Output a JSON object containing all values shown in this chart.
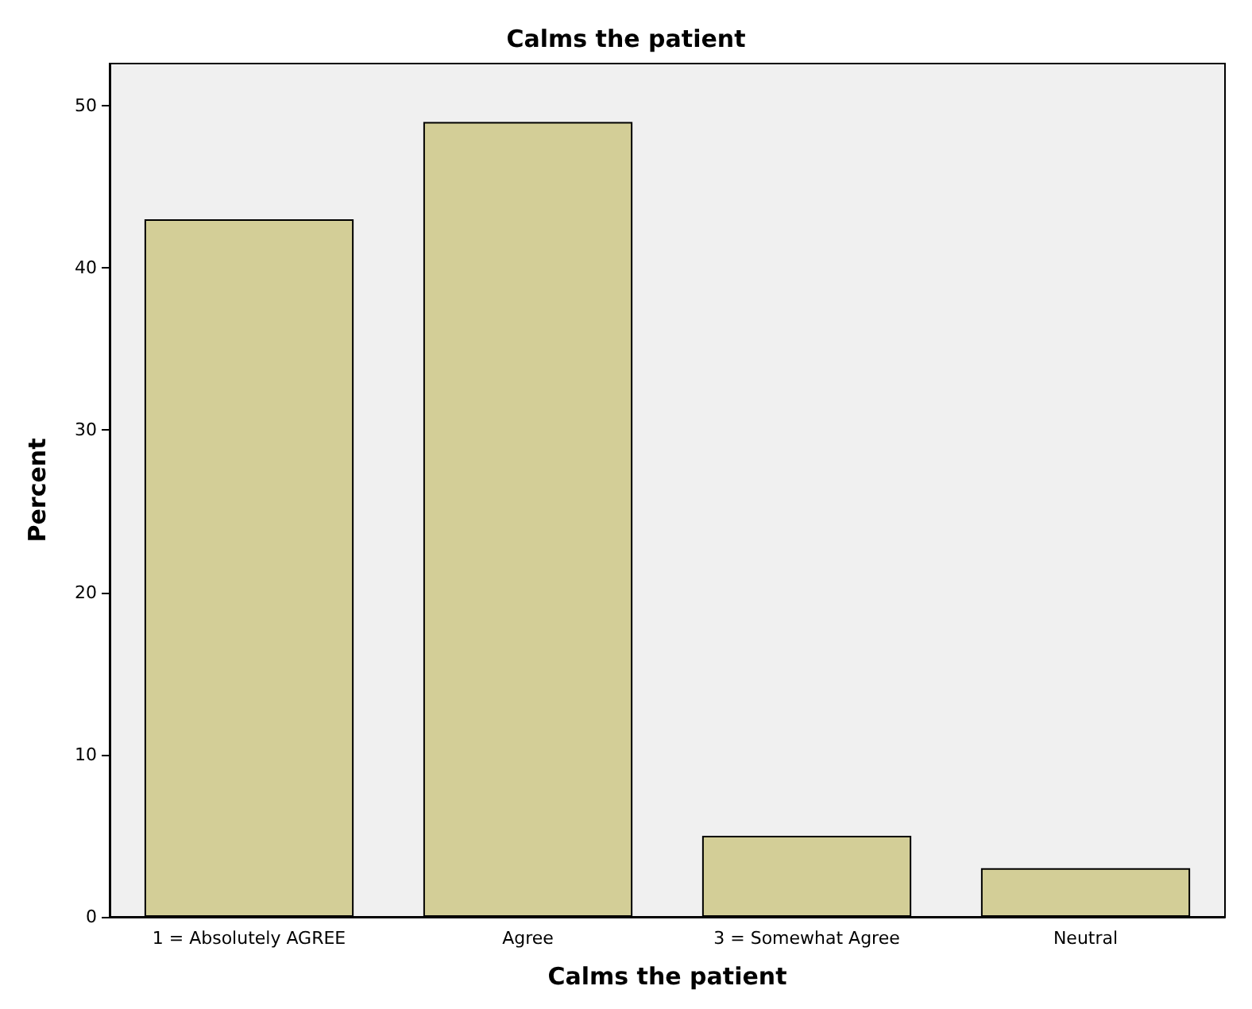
{
  "chart_data": {
    "type": "bar",
    "title": "Calms the patient",
    "xlabel": "Calms the patient",
    "ylabel": "Percent",
    "categories": [
      "1 = Absolutely AGREE",
      "Agree",
      "3 = Somewhat Agree",
      "Neutral"
    ],
    "values": [
      43,
      49,
      5,
      3
    ],
    "color": "#d3ce97",
    "ylim": [
      0,
      52.6
    ],
    "yticks": [
      0,
      10,
      20,
      30,
      40,
      50
    ],
    "grid": false
  }
}
